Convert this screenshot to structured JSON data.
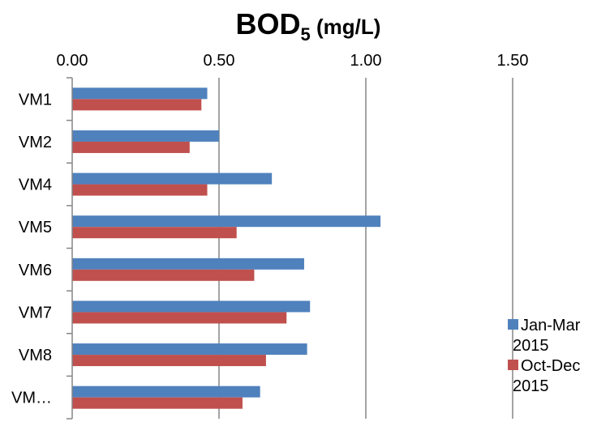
{
  "chart_data": {
    "type": "bar",
    "orientation": "horizontal",
    "title": "BOD",
    "title_subscript": "5",
    "title_suffix": " (mg/L)",
    "categories": [
      "VM1",
      "VM2",
      "VM4",
      "VM5",
      "VM6",
      "VM7",
      "VM8",
      "VM…"
    ],
    "series": [
      {
        "name": "Jan-Mar 2015",
        "legend_lines": [
          "Jan-Mar",
          "2015"
        ],
        "color": "#4F81BD",
        "values": [
          0.46,
          0.5,
          0.68,
          1.05,
          0.79,
          0.81,
          0.8,
          0.64
        ]
      },
      {
        "name": "Oct-Dec 2015",
        "legend_lines": [
          "Oct-Dec",
          "2015"
        ],
        "color": "#C0504D",
        "values": [
          0.44,
          0.4,
          0.46,
          0.56,
          0.62,
          0.73,
          0.66,
          0.58
        ]
      }
    ],
    "xlim": [
      0,
      1.5
    ],
    "xticks": [
      "0.00",
      "0.50",
      "1.00",
      "1.50"
    ],
    "x_axis_position": "top",
    "grid": true,
    "legend_position": "right"
  }
}
